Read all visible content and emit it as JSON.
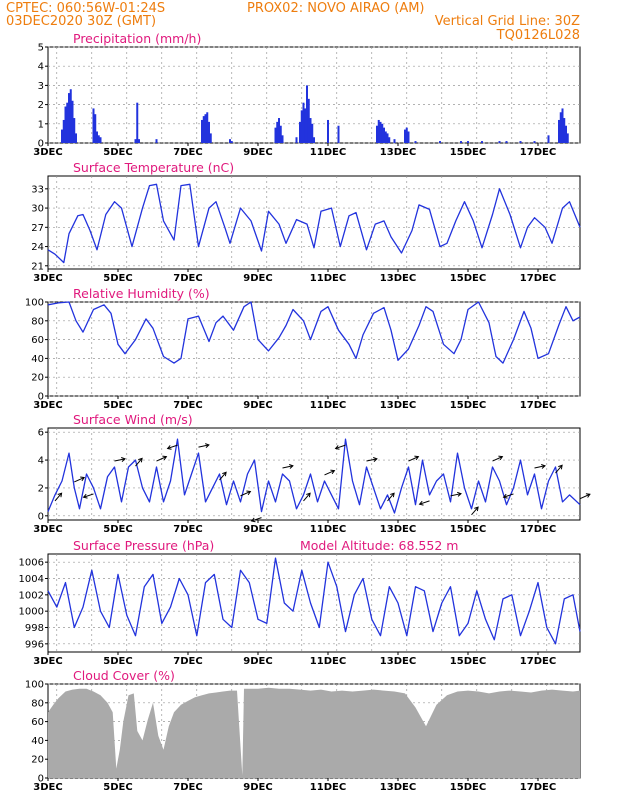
{
  "header": {
    "line1_left": "CPTEC:   060:56W-01:24S",
    "line1_mid": "PROX02: NOVO AIRAO (AM)",
    "line2_left": "03DEC2020 30Z (GMT)",
    "line2_right": "Vertical Grid Line: 30Z",
    "line3_right": "TQ0126L028"
  },
  "colors": {
    "header": "#ee7d0e",
    "title": "#e0197d",
    "series": "#2233dd",
    "cloud": "#aaaaaa"
  },
  "chart_data": [
    {
      "type": "bar",
      "title": "Precipitation (mm/h)",
      "xlim": [
        3,
        18.2
      ],
      "ylim": [
        0,
        5
      ],
      "yticks": [
        0,
        1,
        2,
        3,
        4,
        5
      ],
      "xticks": [
        "3DEC",
        "5DEC",
        "7DEC",
        "9DEC",
        "11DEC",
        "13DEC",
        "15DEC",
        "17DEC"
      ],
      "x": [
        3.4,
        3.45,
        3.5,
        3.55,
        3.6,
        3.65,
        3.7,
        3.75,
        3.8,
        4.3,
        4.35,
        4.4,
        4.45,
        4.5,
        5.5,
        5.55,
        5.6,
        6.1,
        7.4,
        7.45,
        7.5,
        7.55,
        7.6,
        7.65,
        8.2,
        8.25,
        9.5,
        9.55,
        9.6,
        9.65,
        9.7,
        10.1,
        10.2,
        10.25,
        10.3,
        10.35,
        10.4,
        10.45,
        10.5,
        10.55,
        10.6,
        11.0,
        11.3,
        12.4,
        12.45,
        12.5,
        12.55,
        12.6,
        12.65,
        12.7,
        12.75,
        12.9,
        13.2,
        13.25,
        13.3,
        13.5,
        14.2,
        14.8,
        15.0,
        15.4,
        15.9,
        16.1,
        16.5,
        16.9,
        17.3,
        17.6,
        17.65,
        17.7,
        17.75,
        17.8,
        17.85
      ],
      "values": [
        0.7,
        1.2,
        1.9,
        2.1,
        2.6,
        2.8,
        2.2,
        1.3,
        0.5,
        1.8,
        1.5,
        0.6,
        0.4,
        0.3,
        0.2,
        2.1,
        0.2,
        0.2,
        1.2,
        1.4,
        1.5,
        1.6,
        1.1,
        0.5,
        0.2,
        0.1,
        0.8,
        1.1,
        1.3,
        0.9,
        0.4,
        0.3,
        1.1,
        1.7,
        2.1,
        1.8,
        3.0,
        2.3,
        1.3,
        1.0,
        0.3,
        1.2,
        0.9,
        0.9,
        1.2,
        1.1,
        1.0,
        0.8,
        0.6,
        0.5,
        0.3,
        0.2,
        0.7,
        0.8,
        0.6,
        0.1,
        0.1,
        0.1,
        0.1,
        0.1,
        0.1,
        0.1,
        0.1,
        0.1,
        0.4,
        1.2,
        1.6,
        1.8,
        1.3,
        0.9,
        0.5
      ]
    },
    {
      "type": "line",
      "title": "Surface Temperature (nC)",
      "xlim": [
        3,
        18.2
      ],
      "ylim": [
        20.5,
        35
      ],
      "yticks": [
        21,
        24,
        27,
        30,
        33
      ],
      "xticks": [
        "3DEC",
        "5DEC",
        "7DEC",
        "9DEC",
        "11DEC",
        "13DEC",
        "15DEC",
        "17DEC"
      ],
      "x": [
        3.0,
        3.2,
        3.45,
        3.6,
        3.85,
        4.0,
        4.2,
        4.4,
        4.65,
        4.9,
        5.1,
        5.4,
        5.7,
        5.9,
        6.1,
        6.3,
        6.6,
        6.8,
        7.05,
        7.3,
        7.6,
        7.8,
        8.05,
        8.2,
        8.5,
        8.8,
        9.1,
        9.3,
        9.6,
        9.8,
        10.1,
        10.4,
        10.6,
        10.8,
        11.1,
        11.35,
        11.6,
        11.8,
        12.1,
        12.35,
        12.6,
        12.8,
        13.1,
        13.4,
        13.6,
        13.9,
        14.2,
        14.4,
        14.65,
        14.9,
        15.15,
        15.4,
        15.7,
        15.9,
        16.2,
        16.5,
        16.7,
        16.9,
        17.2,
        17.4,
        17.7,
        17.9,
        18.2
      ],
      "values": [
        23.5,
        22.8,
        21.5,
        26,
        28.8,
        29,
        26.5,
        23.5,
        29,
        31,
        30,
        24,
        30,
        33.5,
        33.7,
        28,
        25,
        33.5,
        33.7,
        24,
        30,
        31,
        27,
        24.5,
        30,
        28,
        23.3,
        29.5,
        27.5,
        24.5,
        28.2,
        27.5,
        23.8,
        29.5,
        30,
        24,
        28.8,
        29.3,
        23.5,
        27.5,
        28,
        25.5,
        23,
        26.5,
        30.5,
        29.8,
        24,
        24.5,
        28,
        31,
        28,
        23.8,
        29,
        33,
        29,
        23.8,
        27,
        28.5,
        27,
        24.5,
        30,
        31,
        27
      ]
    },
    {
      "type": "line",
      "title": "Relative Humidity (%)",
      "xlim": [
        3,
        18.2
      ],
      "ylim": [
        0,
        100
      ],
      "yticks": [
        0,
        20,
        40,
        60,
        80,
        100
      ],
      "xticks": [
        "3DEC",
        "5DEC",
        "7DEC",
        "9DEC",
        "11DEC",
        "13DEC",
        "15DEC",
        "17DEC"
      ],
      "x": [
        3.0,
        3.3,
        3.6,
        3.8,
        4.0,
        4.3,
        4.6,
        4.8,
        5.0,
        5.2,
        5.5,
        5.8,
        6.0,
        6.3,
        6.6,
        6.8,
        7.0,
        7.3,
        7.6,
        7.8,
        8.0,
        8.3,
        8.6,
        8.8,
        9.0,
        9.3,
        9.6,
        9.8,
        10.0,
        10.3,
        10.5,
        10.8,
        11.0,
        11.3,
        11.6,
        11.8,
        12.0,
        12.3,
        12.6,
        12.8,
        13.0,
        13.3,
        13.6,
        13.8,
        14.0,
        14.3,
        14.6,
        14.8,
        15.0,
        15.3,
        15.6,
        15.8,
        16.0,
        16.3,
        16.6,
        16.8,
        17.0,
        17.3,
        17.6,
        17.8,
        18.0,
        18.2
      ],
      "values": [
        97,
        99,
        100,
        80,
        68,
        92,
        97,
        88,
        55,
        45,
        60,
        82,
        72,
        42,
        35,
        40,
        82,
        85,
        58,
        78,
        85,
        70,
        95,
        100,
        60,
        48,
        62,
        75,
        92,
        80,
        60,
        90,
        95,
        70,
        55,
        40,
        65,
        88,
        94,
        70,
        38,
        50,
        75,
        95,
        90,
        55,
        45,
        60,
        92,
        100,
        78,
        42,
        35,
        60,
        90,
        72,
        40,
        45,
        76,
        95,
        80,
        84
      ]
    },
    {
      "type": "line",
      "title": "Surface Wind (m/s)",
      "xlim": [
        3,
        18.2
      ],
      "ylim": [
        -0.3,
        6.3
      ],
      "yticks": [
        0,
        2,
        4,
        6
      ],
      "xticks": [
        "3DEC",
        "5DEC",
        "7DEC",
        "9DEC",
        "11DEC",
        "13DEC",
        "15DEC",
        "17DEC"
      ],
      "x": [
        3.0,
        3.2,
        3.4,
        3.6,
        3.75,
        3.9,
        4.1,
        4.3,
        4.5,
        4.7,
        4.9,
        5.1,
        5.3,
        5.5,
        5.7,
        5.9,
        6.1,
        6.3,
        6.5,
        6.7,
        6.9,
        7.1,
        7.3,
        7.5,
        7.7,
        7.9,
        8.1,
        8.3,
        8.5,
        8.7,
        8.9,
        9.1,
        9.3,
        9.5,
        9.7,
        9.9,
        10.1,
        10.3,
        10.5,
        10.7,
        10.9,
        11.1,
        11.3,
        11.5,
        11.7,
        11.9,
        12.1,
        12.3,
        12.5,
        12.7,
        12.9,
        13.1,
        13.3,
        13.5,
        13.7,
        13.9,
        14.1,
        14.3,
        14.5,
        14.7,
        14.9,
        15.1,
        15.3,
        15.5,
        15.7,
        15.9,
        16.1,
        16.3,
        16.5,
        16.7,
        16.9,
        17.1,
        17.3,
        17.5,
        17.7,
        17.9,
        18.2
      ],
      "values": [
        0.3,
        1.5,
        2.5,
        4.5,
        2.0,
        0.5,
        3.0,
        2.0,
        0.5,
        2.8,
        3.5,
        1.0,
        3.5,
        4.0,
        2.0,
        1.0,
        3.5,
        1.0,
        2.5,
        5.5,
        1.5,
        3.0,
        4.5,
        1.0,
        2.0,
        3.0,
        0.8,
        2.5,
        1.0,
        3.0,
        4.0,
        0.3,
        2.5,
        1.0,
        3.0,
        2.5,
        0.5,
        1.5,
        3.0,
        1.0,
        2.5,
        1.5,
        0.5,
        5.5,
        2.5,
        0.8,
        3.5,
        2.0,
        0.5,
        1.5,
        0.2,
        2.0,
        3.5,
        0.8,
        4.0,
        1.5,
        2.5,
        3.0,
        1.0,
        4.5,
        2.0,
        0.5,
        2.5,
        1.0,
        3.5,
        2.5,
        0.8,
        2.0,
        4.0,
        1.5,
        3.0,
        0.5,
        2.5,
        3.5,
        1.0,
        1.5,
        0.8
      ]
    },
    {
      "type": "line",
      "title": "Surface Pressure (hPa)",
      "annotation": "Model Altitude: 68.552 m",
      "xlim": [
        3,
        18.2
      ],
      "ylim": [
        995,
        1007
      ],
      "yticks": [
        996,
        998,
        1000,
        1002,
        1004,
        1006
      ],
      "xticks": [
        "3DEC",
        "5DEC",
        "7DEC",
        "9DEC",
        "11DEC",
        "13DEC",
        "15DEC",
        "17DEC"
      ],
      "x": [
        3.0,
        3.25,
        3.5,
        3.75,
        4.0,
        4.25,
        4.5,
        4.75,
        5.0,
        5.25,
        5.5,
        5.75,
        6.0,
        6.25,
        6.5,
        6.75,
        7.0,
        7.25,
        7.5,
        7.75,
        8.0,
        8.25,
        8.5,
        8.75,
        9.0,
        9.25,
        9.5,
        9.75,
        10.0,
        10.25,
        10.5,
        10.75,
        11.0,
        11.25,
        11.5,
        11.75,
        12.0,
        12.25,
        12.5,
        12.75,
        13.0,
        13.25,
        13.5,
        13.75,
        14.0,
        14.25,
        14.5,
        14.75,
        15.0,
        15.25,
        15.5,
        15.75,
        16.0,
        16.25,
        16.5,
        16.75,
        17.0,
        17.25,
        17.5,
        17.75,
        18.0,
        18.2
      ],
      "values": [
        1002.5,
        1000.5,
        1003.5,
        998,
        1000.5,
        1005,
        1000,
        998,
        1004.5,
        999.5,
        997,
        1003,
        1004.5,
        998.5,
        1000.5,
        1004,
        1002,
        997,
        1003.5,
        1004.5,
        999,
        998,
        1005,
        1003.5,
        999,
        998.5,
        1006.5,
        1001,
        1000,
        1005,
        1001,
        998,
        1006,
        1003,
        997.5,
        1002,
        1004,
        999,
        997,
        1003,
        1001,
        997,
        1003,
        1002.5,
        997.5,
        1001,
        1003,
        997,
        998.5,
        1002.5,
        999,
        996.5,
        1001.5,
        1002,
        997,
        1000,
        1003.5,
        998,
        996,
        1001.5,
        1002,
        997.5
      ]
    },
    {
      "type": "area",
      "title": "Cloud Cover (%)",
      "xlim": [
        3,
        18.2
      ],
      "ylim": [
        0,
        100
      ],
      "yticks": [
        0,
        20,
        40,
        60,
        80,
        100
      ],
      "xticks": [
        "3DEC",
        "5DEC",
        "7DEC",
        "9DEC",
        "11DEC",
        "13DEC",
        "15DEC",
        "17DEC"
      ],
      "x": [
        3.0,
        3.15,
        3.3,
        3.5,
        3.7,
        3.9,
        4.1,
        4.3,
        4.5,
        4.7,
        4.85,
        4.95,
        5.05,
        5.15,
        5.3,
        5.45,
        5.55,
        5.7,
        5.85,
        6.0,
        6.15,
        6.3,
        6.45,
        6.6,
        6.8,
        7.0,
        7.2,
        7.4,
        7.6,
        7.8,
        8.0,
        8.2,
        8.4,
        8.55,
        8.6,
        8.7,
        9.0,
        9.3,
        9.6,
        9.9,
        10.2,
        10.5,
        10.8,
        11.1,
        11.4,
        11.7,
        12.0,
        12.3,
        12.6,
        12.9,
        13.2,
        13.5,
        13.8,
        14.1,
        14.4,
        14.7,
        15.0,
        15.3,
        15.6,
        15.9,
        16.2,
        16.5,
        16.8,
        17.1,
        17.4,
        17.7,
        18.0,
        18.2
      ],
      "values": [
        70,
        78,
        85,
        92,
        94,
        95,
        95,
        92,
        88,
        80,
        70,
        10,
        30,
        60,
        88,
        90,
        50,
        40,
        62,
        80,
        45,
        30,
        55,
        70,
        78,
        82,
        86,
        88,
        90,
        91,
        92,
        93,
        93,
        3,
        95,
        95,
        95,
        96,
        95,
        95,
        94,
        93,
        94,
        92,
        93,
        92,
        93,
        94,
        93,
        92,
        90,
        75,
        55,
        78,
        88,
        92,
        93,
        92,
        90,
        92,
        93,
        92,
        91,
        93,
        94,
        93,
        92,
        93
      ]
    }
  ]
}
